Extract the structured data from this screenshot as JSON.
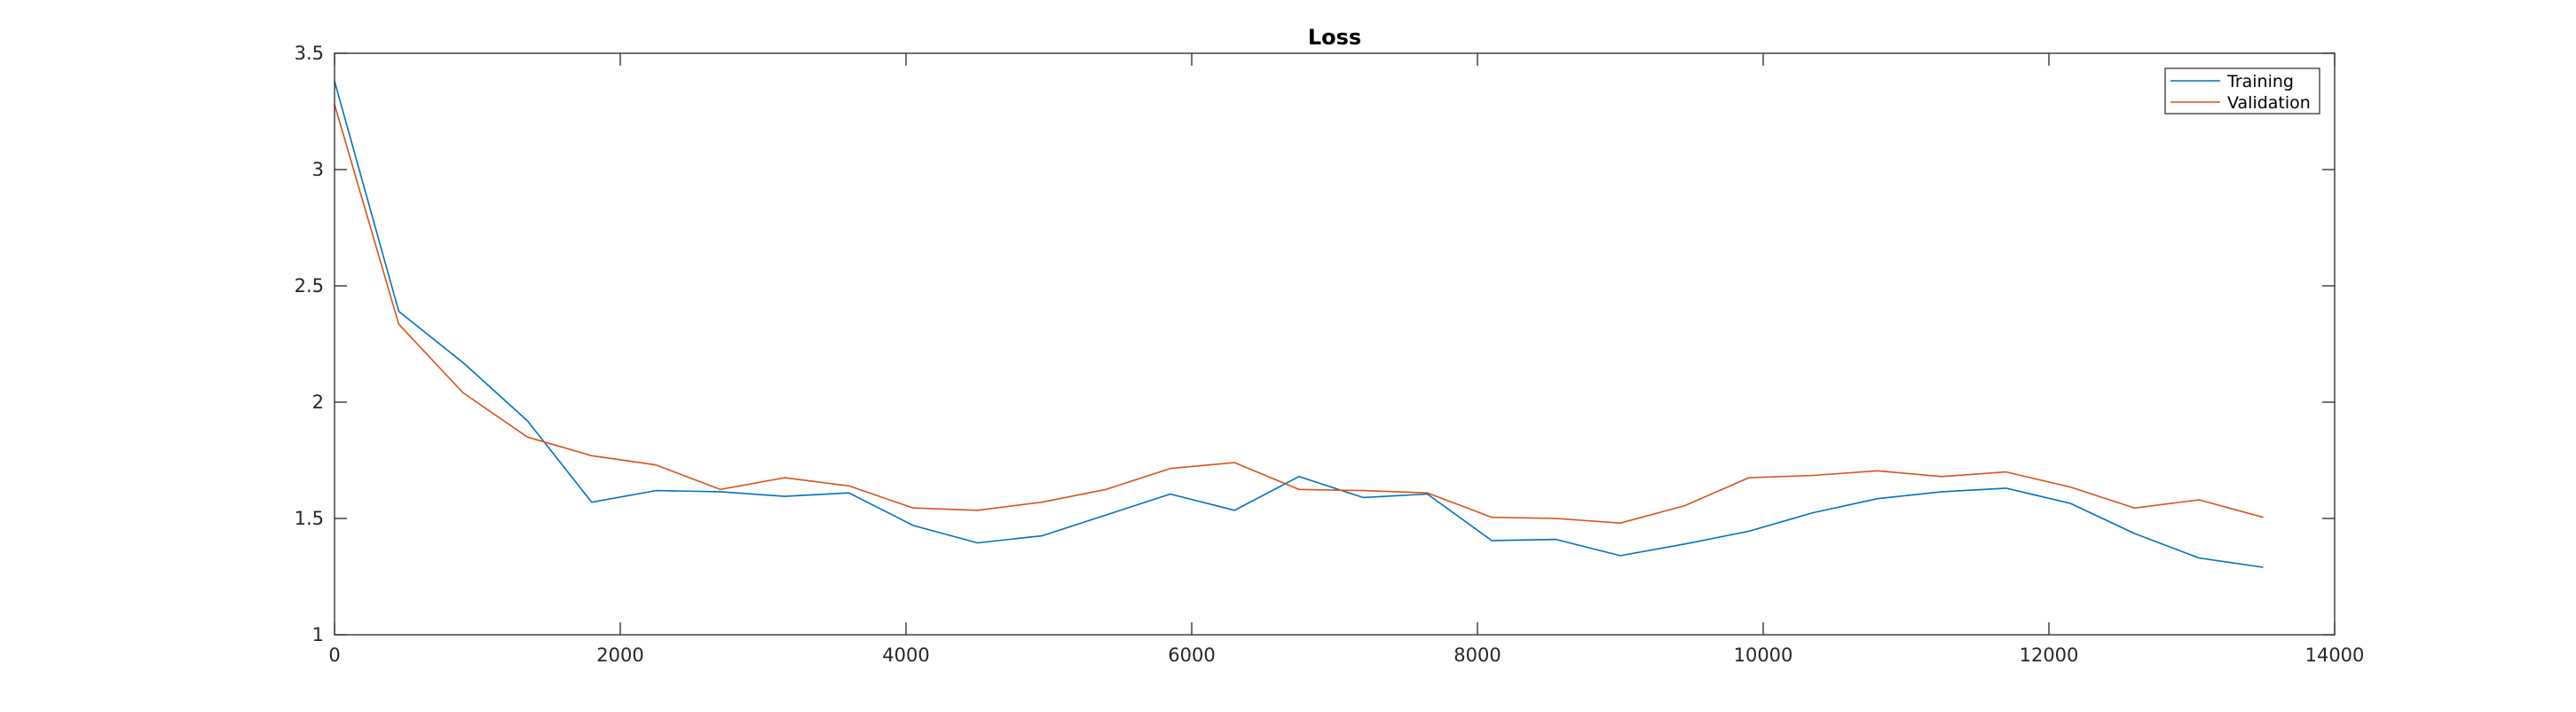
{
  "chart_data": {
    "type": "line",
    "title": "Loss",
    "xlabel": "",
    "ylabel": "",
    "xlim": [
      0,
      14000
    ],
    "ylim": [
      1,
      3.5
    ],
    "xticks": [
      0,
      2000,
      4000,
      6000,
      8000,
      10000,
      12000,
      14000
    ],
    "yticks": [
      1,
      1.5,
      2,
      2.5,
      3,
      3.5
    ],
    "xtick_labels": [
      "0",
      "2000",
      "4000",
      "6000",
      "8000",
      "10000",
      "12000",
      "14000"
    ],
    "ytick_labels": [
      "1",
      "1.5",
      "2",
      "2.5",
      "3",
      "3.5"
    ],
    "grid": false,
    "legend_position": "top-right",
    "x": [
      0,
      450,
      900,
      1350,
      1800,
      2250,
      2700,
      3150,
      3600,
      4050,
      4500,
      4950,
      5400,
      5850,
      6300,
      6750,
      7200,
      7650,
      8100,
      8550,
      9000,
      9450,
      9900,
      10350,
      10800,
      11250,
      11700,
      12150,
      12600,
      13050,
      13500
    ],
    "series": [
      {
        "name": "Training",
        "color": "#0072BD",
        "values": [
          3.38,
          2.39,
          2.17,
          1.92,
          1.57,
          1.62,
          1.615,
          1.595,
          1.61,
          1.47,
          1.395,
          1.425,
          1.515,
          1.605,
          1.535,
          1.68,
          1.59,
          1.605,
          1.405,
          1.41,
          1.34,
          1.39,
          1.445,
          1.525,
          1.585,
          1.615,
          1.63,
          1.565,
          1.435,
          1.33,
          1.29
        ]
      },
      {
        "name": "Validation",
        "color": "#D95319",
        "values": [
          3.28,
          2.335,
          2.04,
          1.85,
          1.77,
          1.73,
          1.625,
          1.675,
          1.64,
          1.545,
          1.535,
          1.57,
          1.625,
          1.715,
          1.74,
          1.625,
          1.62,
          1.61,
          1.505,
          1.5,
          1.48,
          1.555,
          1.675,
          1.685,
          1.705,
          1.68,
          1.7,
          1.635,
          1.545,
          1.58,
          1.505
        ]
      }
    ]
  }
}
